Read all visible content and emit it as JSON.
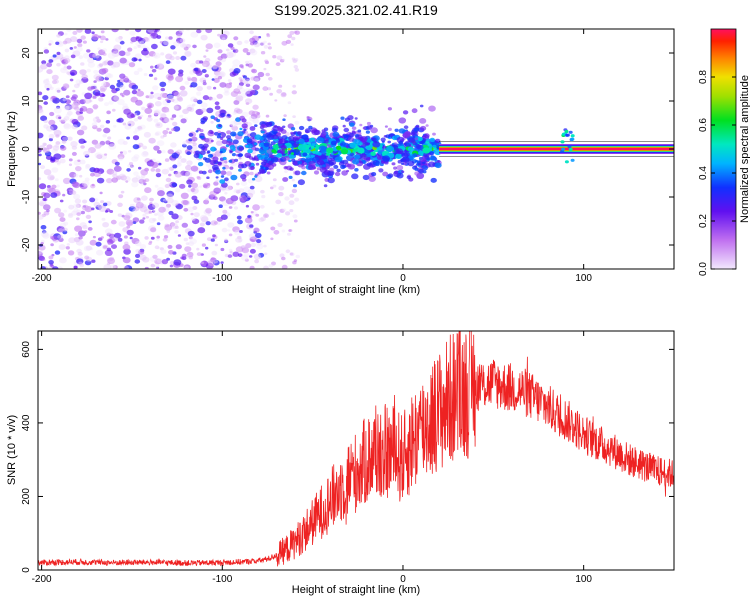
{
  "title": "S199.2025.321.02.41.R19",
  "chart_data": [
    {
      "type": "heatmap",
      "title": "S199.2025.321.02.41.R19",
      "xlabel": "Height of straight line (km)",
      "ylabel": "Frequency (Hz)",
      "xlim": [
        -202,
        150
      ],
      "ylim": [
        -25,
        25
      ],
      "xticks": [
        -200,
        -100,
        0,
        100
      ],
      "yticks": [
        -20,
        -10,
        0,
        10,
        20
      ],
      "colorbar": {
        "label": "Normalized spectral amplitude",
        "range": [
          0,
          1
        ],
        "ticks": [
          "0.0",
          "0.2",
          "0.4",
          "0.6",
          "0.8"
        ]
      },
      "features": [
        {
          "name": "scattered noise",
          "x_range": [
            -202,
            -78
          ],
          "freq_range": [
            -25,
            25
          ],
          "amplitude": "low"
        },
        {
          "name": "dispersed signal",
          "x_range": [
            -78,
            20
          ],
          "freq_center": 0,
          "freq_spread": 8,
          "amplitude": "low-mid"
        },
        {
          "name": "narrow carrier line",
          "x_range": [
            20,
            150
          ],
          "freq": 0,
          "amplitude": 1.0
        }
      ]
    },
    {
      "type": "line",
      "xlabel": "Height of straight line (km)",
      "ylabel": "SNR (10 * v/v)",
      "xlim": [
        -202,
        150
      ],
      "ylim": [
        0,
        650
      ],
      "xticks": [
        -200,
        -100,
        0,
        100
      ],
      "yticks": [
        0,
        200,
        400,
        600
      ],
      "series": [
        {
          "name": "SNR",
          "color": "#ee2222",
          "x": [
            -202,
            -180,
            -160,
            -140,
            -120,
            -100,
            -90,
            -80,
            -75,
            -70,
            -65,
            -60,
            -55,
            -50,
            -45,
            -40,
            -35,
            -30,
            -25,
            -20,
            -15,
            -10,
            -5,
            0,
            5,
            10,
            15,
            20,
            25,
            30,
            35,
            40,
            45,
            50,
            55,
            60,
            65,
            70,
            75,
            80,
            85,
            90,
            95,
            100,
            105,
            110,
            115,
            120,
            125,
            130,
            135,
            140,
            145,
            150
          ],
          "y": [
            20,
            22,
            20,
            21,
            19,
            20,
            22,
            25,
            30,
            40,
            55,
            75,
            100,
            130,
            160,
            190,
            220,
            250,
            270,
            300,
            320,
            320,
            320,
            300,
            350,
            380,
            410,
            430,
            460,
            480,
            490,
            500,
            505,
            510,
            500,
            495,
            490,
            475,
            460,
            445,
            425,
            410,
            390,
            370,
            355,
            340,
            330,
            315,
            300,
            290,
            280,
            270,
            265,
            260
          ]
        }
      ]
    }
  ]
}
